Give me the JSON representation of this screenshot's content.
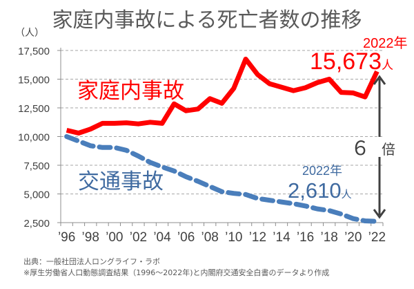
{
  "title": "家庭内事故による死亡者数の推移",
  "source_lines": [
    "出典：一般社団法人ロングライフ・ラボ",
    "※厚生労働省人口動態調査結果（1996～2022年)と内閣府交通安全白書のデータより作成"
  ],
  "colors": {
    "home": "#ff0000",
    "traffic": "#4a7ebb",
    "axis": "#8c8c8c",
    "grid": "#a6a6a6",
    "arrow": "#404040",
    "text": "#595959"
  },
  "chart_data": {
    "type": "line",
    "title": "家庭内事故による死亡者数の推移",
    "ylabel": "（人）",
    "xlabel": "",
    "ylim": [
      2500,
      17500
    ],
    "yticks": [
      2500,
      5000,
      7500,
      10000,
      12500,
      15000,
      17500
    ],
    "ytick_labels": [
      "2,500",
      "5,000",
      "7,500",
      "10,000",
      "12,500",
      "15,000",
      "17,500"
    ],
    "grid": true,
    "x": [
      1996,
      1997,
      1998,
      1999,
      2000,
      2001,
      2002,
      2003,
      2004,
      2005,
      2006,
      2007,
      2008,
      2009,
      2010,
      2011,
      2012,
      2013,
      2014,
      2015,
      2016,
      2017,
      2018,
      2019,
      2020,
      2021,
      2022
    ],
    "xtick_labels": [
      "’96",
      "’98",
      "’00",
      "’02",
      "’04",
      "’06",
      "’08",
      "’10",
      "’12",
      "’14",
      "’16",
      "’18",
      "’20",
      "’22"
    ],
    "series": [
      {
        "name": "家庭内事故",
        "style": "solid",
        "values": [
          10550,
          10300,
          10650,
          11150,
          11150,
          11200,
          11100,
          11250,
          11150,
          12850,
          12250,
          12400,
          13300,
          12900,
          14200,
          16750,
          15400,
          14600,
          14300,
          14000,
          14250,
          14700,
          15000,
          13850,
          13800,
          13450,
          15673
        ]
      },
      {
        "name": "交通事故",
        "style": "dashed",
        "values": [
          10000,
          9600,
          9200,
          9050,
          9050,
          8800,
          8300,
          7750,
          7350,
          7000,
          6500,
          6100,
          5650,
          5200,
          5050,
          4950,
          4600,
          4450,
          4300,
          4150,
          3950,
          3700,
          3550,
          3250,
          2850,
          2650,
          2610
        ]
      }
    ],
    "annotations": {
      "home_year": "2022年",
      "home_value": "15,673",
      "home_unit": "人",
      "traffic_year": "2022年",
      "traffic_value": "2,610",
      "traffic_unit": "人",
      "ratio_num": "６",
      "ratio_unit": "倍"
    }
  }
}
